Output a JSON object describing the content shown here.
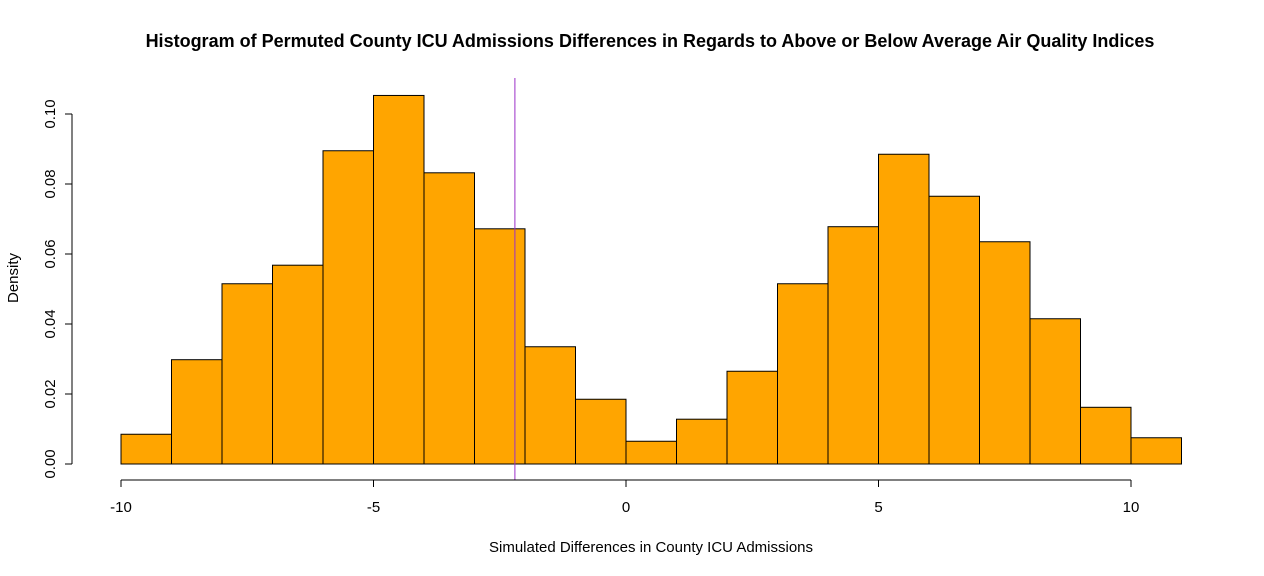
{
  "chart_data": {
    "type": "histogram",
    "title": "Histogram of Permuted County ICU Admissions Differences in Regards to Above or Below Average Air Quality Indices",
    "xlabel": "Simulated Differences in County ICU Admissions",
    "ylabel": "Density",
    "xlim": [
      -10,
      11
    ],
    "ylim": [
      0,
      0.11
    ],
    "x_ticks": [
      -10,
      -5,
      0,
      5,
      10
    ],
    "x_tick_labels": [
      "-10",
      "-5",
      "0",
      "5",
      "10"
    ],
    "y_ticks": [
      0,
      0.02,
      0.04,
      0.06,
      0.08,
      0.1
    ],
    "y_tick_labels": [
      "0.00",
      "0.02",
      "0.04",
      "0.06",
      "0.08",
      "0.10"
    ],
    "bin_edges": [
      -10,
      -9,
      -8,
      -7,
      -6,
      -5,
      -4,
      -3,
      -2,
      -1,
      0,
      1,
      2,
      3,
      4,
      5,
      6,
      7,
      8,
      9,
      10,
      11
    ],
    "values": [
      0.0085,
      0.0298,
      0.0515,
      0.0568,
      0.0895,
      0.1053,
      0.0832,
      0.0672,
      0.0335,
      0.0185,
      0.0065,
      0.0128,
      0.0265,
      0.0515,
      0.0678,
      0.0885,
      0.0765,
      0.0635,
      0.0415,
      0.0162,
      0.0075
    ],
    "bar_color": "#FFA500",
    "bar_edge_color": "#000000",
    "vline": {
      "x": -2.2,
      "color": "#9B30C8"
    },
    "grid": false
  }
}
